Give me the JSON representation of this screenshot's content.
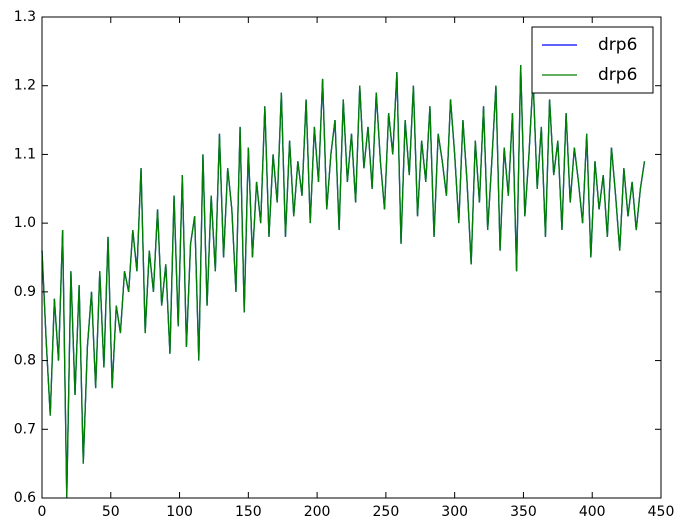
{
  "chart_data": {
    "type": "line",
    "x": [
      0,
      3,
      6,
      9,
      12,
      15,
      18,
      21,
      24,
      27,
      30,
      33,
      36,
      39,
      42,
      45,
      48,
      51,
      54,
      57,
      60,
      63,
      66,
      69,
      72,
      75,
      78,
      81,
      84,
      87,
      90,
      93,
      96,
      99,
      102,
      105,
      108,
      111,
      114,
      117,
      120,
      123,
      126,
      129,
      132,
      135,
      138,
      141,
      144,
      147,
      150,
      153,
      156,
      159,
      162,
      165,
      168,
      171,
      174,
      177,
      180,
      183,
      186,
      189,
      192,
      195,
      198,
      201,
      204,
      207,
      210,
      213,
      216,
      219,
      222,
      225,
      228,
      231,
      234,
      237,
      240,
      243,
      246,
      249,
      252,
      255,
      258,
      261,
      264,
      267,
      270,
      273,
      276,
      279,
      282,
      285,
      288,
      291,
      294,
      297,
      300,
      303,
      306,
      309,
      312,
      315,
      318,
      321,
      324,
      327,
      330,
      333,
      336,
      339,
      342,
      345,
      348,
      351,
      354,
      357,
      360,
      363,
      366,
      369,
      372,
      375,
      378,
      381,
      384,
      387,
      390,
      393,
      396,
      399,
      402,
      405,
      408,
      411,
      414,
      417,
      420,
      423,
      426,
      429,
      432,
      435,
      438
    ],
    "series": [
      {
        "name": "drp6",
        "color": "#0000ff",
        "values": [
          0.96,
          0.83,
          0.72,
          0.89,
          0.8,
          0.99,
          0.6,
          0.93,
          0.75,
          0.91,
          0.65,
          0.82,
          0.9,
          0.76,
          0.93,
          0.79,
          0.98,
          0.76,
          0.88,
          0.84,
          0.93,
          0.9,
          0.99,
          0.93,
          1.08,
          0.84,
          0.96,
          0.9,
          1.02,
          0.88,
          0.94,
          0.81,
          1.04,
          0.85,
          1.07,
          0.82,
          0.97,
          1.01,
          0.8,
          1.1,
          0.88,
          1.04,
          0.93,
          1.13,
          0.95,
          1.08,
          1.02,
          0.9,
          1.14,
          0.87,
          1.11,
          0.95,
          1.06,
          1.0,
          1.17,
          0.98,
          1.1,
          1.03,
          1.19,
          0.98,
          1.12,
          1.01,
          1.09,
          1.04,
          1.18,
          1.0,
          1.14,
          1.06,
          1.21,
          1.02,
          1.1,
          1.15,
          0.99,
          1.18,
          1.06,
          1.13,
          1.03,
          1.2,
          1.08,
          1.14,
          1.05,
          1.19,
          1.09,
          1.02,
          1.16,
          1.1,
          1.22,
          0.97,
          1.15,
          1.07,
          1.2,
          1.01,
          1.12,
          1.06,
          1.17,
          0.98,
          1.13,
          1.09,
          1.04,
          1.18,
          1.1,
          1.0,
          1.15,
          1.06,
          0.94,
          1.12,
          1.03,
          1.17,
          0.99,
          1.09,
          1.2,
          0.96,
          1.11,
          1.04,
          1.16,
          0.93,
          1.23,
          1.01,
          1.1,
          1.21,
          1.05,
          1.14,
          0.98,
          1.18,
          1.07,
          1.12,
          0.99,
          1.16,
          1.03,
          1.11,
          1.06,
          1.0,
          1.13,
          0.95,
          1.09,
          1.02,
          1.07,
          0.98,
          1.11,
          1.04,
          0.96,
          1.08,
          1.01,
          1.06,
          0.99,
          1.05,
          1.09
        ]
      },
      {
        "name": "drp6",
        "color": "#008000",
        "values": [
          0.96,
          0.83,
          0.72,
          0.89,
          0.8,
          0.99,
          0.6,
          0.93,
          0.75,
          0.91,
          0.65,
          0.82,
          0.9,
          0.76,
          0.93,
          0.79,
          0.98,
          0.76,
          0.88,
          0.84,
          0.93,
          0.9,
          0.99,
          0.93,
          1.08,
          0.84,
          0.96,
          0.9,
          1.02,
          0.88,
          0.94,
          0.81,
          1.04,
          0.85,
          1.07,
          0.82,
          0.97,
          1.01,
          0.8,
          1.1,
          0.88,
          1.04,
          0.93,
          1.13,
          0.95,
          1.08,
          1.02,
          0.9,
          1.14,
          0.87,
          1.11,
          0.95,
          1.06,
          1.0,
          1.17,
          0.98,
          1.1,
          1.03,
          1.19,
          0.98,
          1.12,
          1.01,
          1.09,
          1.04,
          1.18,
          1.0,
          1.14,
          1.06,
          1.21,
          1.02,
          1.1,
          1.15,
          0.99,
          1.18,
          1.06,
          1.13,
          1.03,
          1.2,
          1.08,
          1.14,
          1.05,
          1.19,
          1.09,
          1.02,
          1.16,
          1.1,
          1.22,
          0.97,
          1.15,
          1.07,
          1.2,
          1.01,
          1.12,
          1.06,
          1.17,
          0.98,
          1.13,
          1.09,
          1.04,
          1.18,
          1.1,
          1.0,
          1.15,
          1.06,
          0.94,
          1.12,
          1.03,
          1.17,
          0.99,
          1.09,
          1.2,
          0.96,
          1.11,
          1.04,
          1.16,
          0.93,
          1.23,
          1.01,
          1.1,
          1.21,
          1.05,
          1.14,
          0.98,
          1.18,
          1.07,
          1.12,
          0.99,
          1.16,
          1.03,
          1.11,
          1.06,
          1.0,
          1.13,
          0.95,
          1.09,
          1.02,
          1.07,
          0.98,
          1.11,
          1.04,
          0.96,
          1.08,
          1.01,
          1.06,
          0.99,
          1.05,
          1.09
        ]
      }
    ],
    "xlim": [
      0,
      450
    ],
    "xticks": [
      0,
      50,
      100,
      150,
      200,
      250,
      300,
      350,
      400,
      450
    ],
    "ylim": [
      0.6,
      1.3
    ],
    "yticks": [
      0.6,
      0.7,
      0.8,
      0.9,
      {
        "value": 1,
        "label": "1.0"
      },
      1.1,
      1.2,
      1.3
    ],
    "grid": false,
    "legend": "upper right"
  }
}
